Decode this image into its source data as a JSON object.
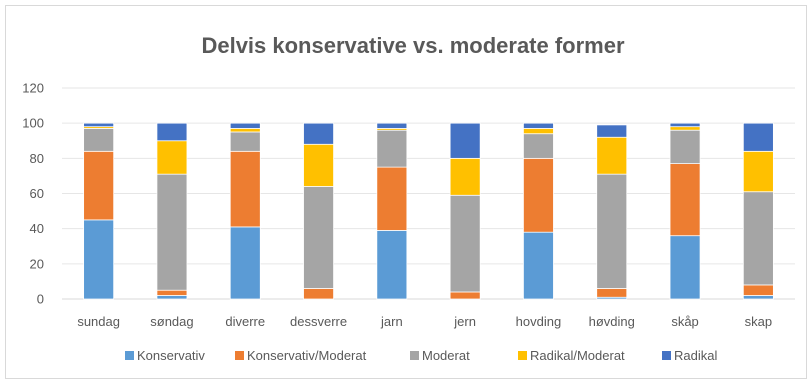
{
  "chart_data": {
    "type": "bar",
    "stacked": true,
    "title": "Delvis konservative vs. moderate former",
    "xlabel": "",
    "ylabel": "",
    "ylim": [
      0,
      120
    ],
    "yticks": [
      "0",
      "20",
      "40",
      "60",
      "80",
      "100",
      "120"
    ],
    "grid": true,
    "legend": "bottom",
    "categories": [
      "sundag",
      "søndag",
      "diverre",
      "dessverre",
      "jarn",
      "jern",
      "hovding",
      "høvding",
      "skåp",
      "skap"
    ],
    "series": [
      {
        "name": "Konservativ",
        "color": "#5b9bd5",
        "values": [
          45,
          2,
          41,
          0,
          39,
          0,
          38,
          1,
          36,
          2
        ]
      },
      {
        "name": "Konservativ/Moderat",
        "color": "#ed7d31",
        "values": [
          39,
          3,
          43,
          6,
          36,
          4,
          42,
          5,
          41,
          6
        ]
      },
      {
        "name": "Moderat",
        "color": "#a5a5a5",
        "values": [
          13,
          66,
          11,
          58,
          21,
          55,
          14,
          65,
          19,
          53
        ]
      },
      {
        "name": "Radikal/Moderat",
        "color": "#ffc000",
        "values": [
          1,
          19,
          2,
          24,
          1,
          21,
          3,
          21,
          2,
          23
        ]
      },
      {
        "name": "Radikal",
        "color": "#4472c4",
        "values": [
          2,
          10,
          3,
          12,
          3,
          20,
          3,
          7,
          2,
          16
        ]
      }
    ]
  }
}
